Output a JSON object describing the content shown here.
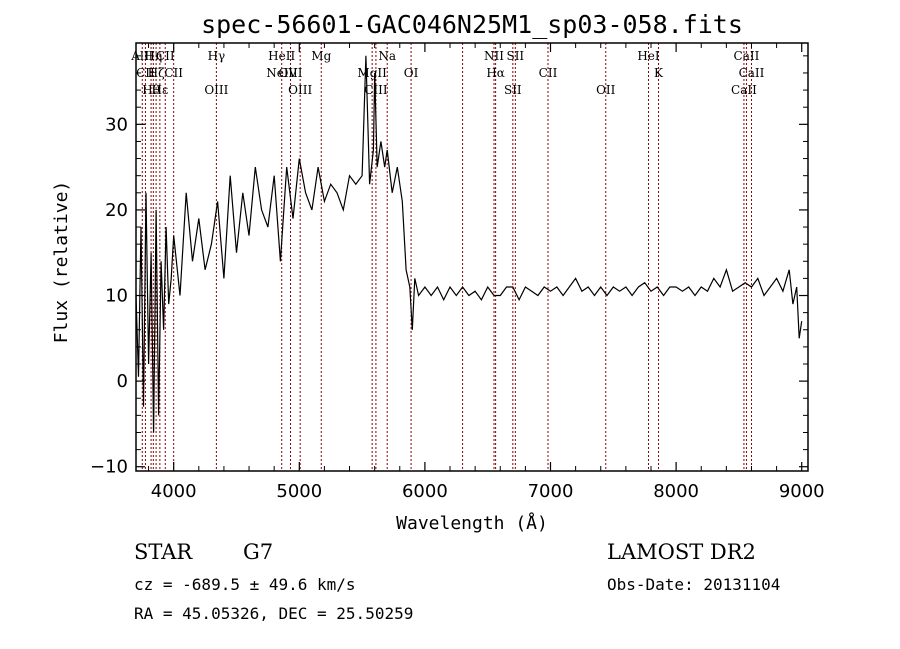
{
  "chart_data": {
    "type": "line",
    "title": "spec-56601-GAC046N25M1_sp03-058.fits",
    "xlabel": "Wavelength (Å)",
    "ylabel": "Flux (relative)",
    "xlim": [
      3700,
      9050
    ],
    "ylim": [
      -10.5,
      39.5
    ],
    "xticks": [
      4000,
      5000,
      6000,
      7000,
      8000,
      9000
    ],
    "yticks": [
      -10,
      0,
      10,
      20,
      30
    ],
    "grid": false,
    "line_color": "#000000",
    "marker_color": "#8b0000",
    "x": [
      3700,
      3720,
      3740,
      3760,
      3780,
      3800,
      3820,
      3840,
      3860,
      3880,
      3900,
      3920,
      3940,
      3960,
      3980,
      4000,
      4050,
      4100,
      4150,
      4200,
      4250,
      4300,
      4350,
      4400,
      4450,
      4500,
      4550,
      4600,
      4650,
      4700,
      4750,
      4800,
      4850,
      4900,
      4950,
      5000,
      5050,
      5100,
      5150,
      5200,
      5250,
      5300,
      5350,
      5400,
      5450,
      5500,
      5530,
      5560,
      5590,
      5600,
      5620,
      5650,
      5680,
      5700,
      5740,
      5780,
      5820,
      5850,
      5880,
      5900,
      5920,
      5950,
      6000,
      6050,
      6100,
      6150,
      6200,
      6250,
      6300,
      6350,
      6400,
      6450,
      6500,
      6550,
      6600,
      6650,
      6700,
      6750,
      6800,
      6850,
      6900,
      6950,
      7000,
      7050,
      7100,
      7150,
      7200,
      7250,
      7300,
      7350,
      7400,
      7450,
      7500,
      7550,
      7600,
      7650,
      7700,
      7750,
      7800,
      7850,
      7900,
      7950,
      8000,
      8050,
      8100,
      8150,
      8200,
      8250,
      8300,
      8350,
      8400,
      8450,
      8500,
      8550,
      8600,
      8650,
      8700,
      8750,
      8800,
      8850,
      8900,
      8930,
      8960,
      8980,
      9000
    ],
    "y": [
      10,
      0.5,
      18,
      -3,
      22,
      2,
      15,
      -6,
      20,
      -4,
      14,
      6,
      18,
      9,
      12,
      17,
      10,
      22,
      14,
      19,
      13,
      16,
      21,
      12,
      24,
      15,
      22,
      17,
      25,
      20,
      18,
      24,
      14,
      25,
      19,
      26,
      22,
      20,
      25,
      21,
      23,
      22,
      20,
      24,
      23,
      24,
      38,
      23,
      27,
      36,
      25,
      28,
      25,
      27,
      22,
      25,
      21,
      13,
      11,
      6,
      12,
      10,
      11,
      10,
      11,
      9.5,
      11,
      10,
      11,
      10,
      10.5,
      9.5,
      11,
      10,
      10,
      11,
      11,
      9.5,
      11,
      10.5,
      10,
      11,
      10.5,
      11,
      10,
      11,
      12,
      10.5,
      11,
      10,
      11,
      10,
      11,
      10.5,
      11,
      10,
      11,
      11.5,
      10.5,
      11,
      10,
      11,
      11,
      10.5,
      11,
      10,
      11,
      10.5,
      12,
      11,
      13,
      10.5,
      11,
      11.5,
      11,
      12,
      10,
      11,
      12,
      10.5,
      13,
      9,
      11,
      5,
      7
    ],
    "markers": [
      {
        "x": 3750,
        "labels": [
          "AlII"
        ]
      },
      {
        "x": 3775,
        "labels": [
          "CII"
        ]
      },
      {
        "x": 3820,
        "labels": [
          "Hθ"
        ]
      },
      {
        "x": 3838,
        "labels": [
          "Hη"
        ]
      },
      {
        "x": 3860,
        "labels": [
          "Hζ"
        ]
      },
      {
        "x": 3890,
        "labels": [
          "Hε"
        ]
      },
      {
        "x": 3933,
        "labels": [
          "CII"
        ]
      },
      {
        "x": 4000,
        "labels": [
          "CII"
        ]
      },
      {
        "x": 4340,
        "labels": [
          "OIII",
          "Hγ"
        ]
      },
      {
        "x": 4860,
        "labels": [
          "HeII",
          "NeIV"
        ]
      },
      {
        "x": 4930,
        "labels": [
          "OIII"
        ]
      },
      {
        "x": 5007,
        "labels": [
          "OIII"
        ]
      },
      {
        "x": 5175,
        "labels": [
          "Mg"
        ]
      },
      {
        "x": 5580,
        "labels": [
          "MgII"
        ]
      },
      {
        "x": 5610,
        "labels": [
          "CIII"
        ]
      },
      {
        "x": 5700,
        "labels": [
          "Na"
        ]
      },
      {
        "x": 5890,
        "labels": [
          "OI"
        ]
      },
      {
        "x": 6300,
        "labels": []
      },
      {
        "x": 6550,
        "labels": [
          "NII"
        ]
      },
      {
        "x": 6563,
        "labels": [
          "Hα"
        ]
      },
      {
        "x": 6700,
        "labels": [
          "SII"
        ]
      },
      {
        "x": 6720,
        "labels": [
          "SII"
        ]
      },
      {
        "x": 6980,
        "labels": [
          "CII"
        ]
      },
      {
        "x": 7440,
        "labels": [
          "OII"
        ]
      },
      {
        "x": 7780,
        "labels": [
          "HeI"
        ]
      },
      {
        "x": 7860,
        "labels": [
          "K"
        ]
      },
      {
        "x": 8540,
        "labels": [
          "CaII"
        ]
      },
      {
        "x": 8560,
        "labels": [
          "CaII"
        ]
      },
      {
        "x": 8600,
        "labels": [
          "CaII"
        ]
      }
    ]
  },
  "info": {
    "object_class": "STAR",
    "subclass": "G7",
    "survey": "LAMOST DR2",
    "redshift_line": "cz = -689.5 ± 49.6 km/s",
    "obs_date": "Obs-Date: 20131104",
    "coords": "RA =  45.05326, DEC =  25.50259"
  }
}
